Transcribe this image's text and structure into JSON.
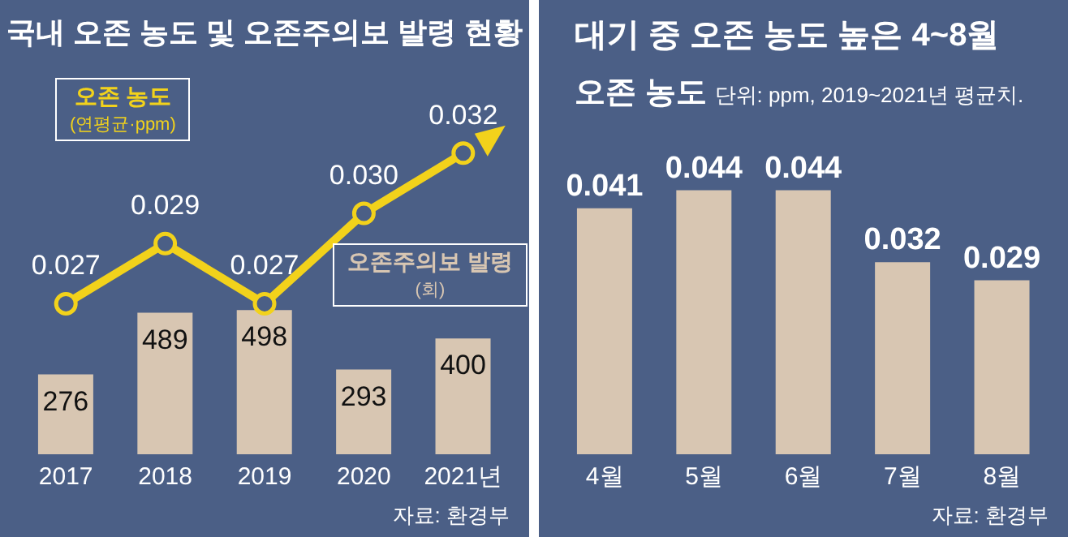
{
  "chart_data": [
    {
      "type": "line",
      "title": "국내 오존 농도 및 오존주의보 발령 현황",
      "categories": [
        "2017",
        "2018",
        "2019",
        "2020",
        "2021년"
      ],
      "series": [
        {
          "name": "오존주의보 발령 (회)",
          "type": "bar",
          "color": "#d8c6b2",
          "values": [
            276,
            489,
            498,
            293,
            400
          ]
        },
        {
          "name": "오존 농도 (연평균·ppm)",
          "axis": "y2",
          "color": "#f2d21b",
          "values": [
            0.027,
            0.029,
            0.027,
            0.03,
            0.032
          ],
          "value_labels": [
            "0.027",
            "0.029",
            "0.027",
            "0.030",
            "0.032"
          ]
        }
      ],
      "ylim": [
        0,
        1300
      ],
      "y2lim": [
        0.022,
        0.0345
      ],
      "tick_labels": "x",
      "data_labels": true,
      "marker": "circle",
      "legend": false,
      "grid": false,
      "annotations": [
        "자료: 환경부"
      ]
    },
    {
      "type": "bar",
      "title": "대기 중 오존 농도 높은 4~8월",
      "subtitle": "오존 농도",
      "categories": [
        "4월",
        "5월",
        "6월",
        "7월",
        "8월"
      ],
      "series": [
        {
          "color": "#d8c6b2",
          "values": [
            0.041,
            0.044,
            0.044,
            0.032,
            0.029
          ]
        }
      ],
      "data_labels": true,
      "legend": false,
      "grid": false,
      "annotations": [
        "단위: ppm, 2019~2021년 평균치.",
        "자료: 환경부"
      ]
    }
  ]
}
